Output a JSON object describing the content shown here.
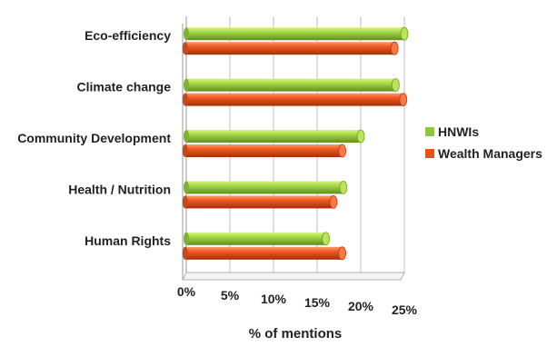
{
  "chart_data": {
    "type": "bar",
    "orientation": "horizontal",
    "style": "3d-cylinder",
    "categories": [
      "Eco-efficiency",
      "Climate change",
      "Community Development",
      "Health / Nutrition",
      "Human Rights"
    ],
    "series": [
      {
        "name": "HNWIs",
        "color": "#8DC63F",
        "values": [
          25,
          24,
          20,
          18,
          16
        ]
      },
      {
        "name": "Wealth Managers",
        "color": "#E8501E",
        "values": [
          24,
          25,
          18,
          17,
          18
        ]
      }
    ],
    "xlabel": "% of mentions",
    "ylabel": "",
    "xlim": [
      0,
      25
    ],
    "xticks": [
      "0%",
      "5%",
      "10%",
      "15%",
      "20%",
      "25%"
    ],
    "grid": true,
    "legend_position": "right"
  }
}
